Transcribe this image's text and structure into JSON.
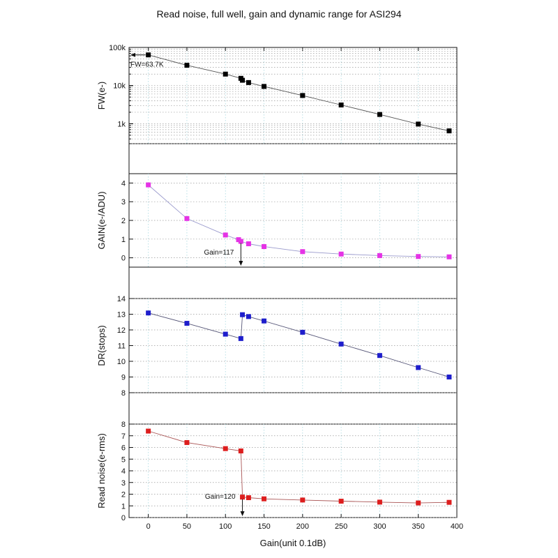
{
  "title": "Read noise, full well, gain and dynamic range for ASI294",
  "chart_data": [
    {
      "type": "scatter",
      "name": "fw",
      "ylabel": "FW(e-)",
      "yscale": "log",
      "ylim": [
        300,
        100000
      ],
      "yticks": [
        1000,
        10000,
        100000
      ],
      "ytick_labels": [
        "1k",
        "10k",
        "100k"
      ],
      "marker_color": "#000000",
      "line_color": "#555555",
      "x": [
        0,
        50,
        100,
        120,
        122,
        130,
        150,
        200,
        250,
        300,
        350,
        390
      ],
      "y": [
        63700,
        34000,
        20000,
        15500,
        13800,
        12000,
        9500,
        5500,
        3100,
        1750,
        980,
        650
      ],
      "annotations": [
        {
          "text": "FW=63.7K",
          "x": 0,
          "y": 63700,
          "arrow": "left"
        }
      ]
    },
    {
      "type": "scatter",
      "name": "gain",
      "ylabel": "GAIN(e-/ADU)",
      "yscale": "linear",
      "ylim": [
        -0.5,
        4.5
      ],
      "yticks": [
        0,
        1,
        2,
        3,
        4
      ],
      "ytick_labels": [
        "0",
        "1",
        "2",
        "3",
        "4"
      ],
      "marker_color": "#e533e5",
      "line_color": "#9999cc",
      "x": [
        0,
        50,
        100,
        117,
        120,
        130,
        150,
        200,
        250,
        300,
        350,
        390
      ],
      "y": [
        3.9,
        2.1,
        1.22,
        0.97,
        0.88,
        0.75,
        0.6,
        0.33,
        0.2,
        0.12,
        0.07,
        0.05
      ],
      "annotations": [
        {
          "text": "Gain=117",
          "x": 120,
          "y": 0.9,
          "arrow": "down"
        }
      ]
    },
    {
      "type": "scatter",
      "name": "dr",
      "ylabel": "DR(stops)",
      "yscale": "linear",
      "ylim": [
        8,
        14
      ],
      "yticks": [
        8,
        9,
        10,
        11,
        12,
        13,
        14
      ],
      "ytick_labels": [
        "8",
        "9",
        "10",
        "11",
        "12",
        "13",
        "14"
      ],
      "marker_color": "#1e1ecc",
      "line_color": "#555577",
      "x": [
        0,
        50,
        100,
        120,
        122,
        130,
        150,
        200,
        250,
        300,
        350,
        390
      ],
      "y": [
        13.08,
        12.42,
        11.73,
        11.45,
        12.97,
        12.85,
        12.57,
        11.85,
        11.1,
        10.37,
        9.6,
        9.0
      ],
      "annotations": []
    },
    {
      "type": "scatter",
      "name": "rn",
      "ylabel": "Read noise(e-rms)",
      "xlabel": "Gain(unit 0.1dB)",
      "yscale": "linear",
      "ylim": [
        0,
        8
      ],
      "yticks": [
        0,
        1,
        2,
        3,
        4,
        5,
        6,
        7,
        8
      ],
      "ytick_labels": [
        "0",
        "1",
        "2",
        "3",
        "4",
        "5",
        "6",
        "7",
        "8"
      ],
      "marker_color": "#dd1e1e",
      "line_color": "#aa5555",
      "x": [
        0,
        50,
        100,
        120,
        122,
        130,
        150,
        200,
        250,
        300,
        350,
        390
      ],
      "y": [
        7.4,
        6.42,
        5.9,
        5.7,
        1.75,
        1.7,
        1.6,
        1.5,
        1.4,
        1.32,
        1.25,
        1.3
      ],
      "annotations": [
        {
          "text": "Gain=120",
          "x": 122,
          "y": 1.75,
          "arrow": "down"
        }
      ]
    }
  ],
  "xaxis": {
    "label": "Gain(unit 0.1dB)",
    "xlim": [
      -25,
      400
    ],
    "ticks": [
      0,
      50,
      100,
      150,
      200,
      250,
      300,
      350,
      400
    ],
    "tick_labels": [
      "0",
      "50",
      "100",
      "150",
      "200",
      "250",
      "300",
      "350",
      "400"
    ]
  }
}
